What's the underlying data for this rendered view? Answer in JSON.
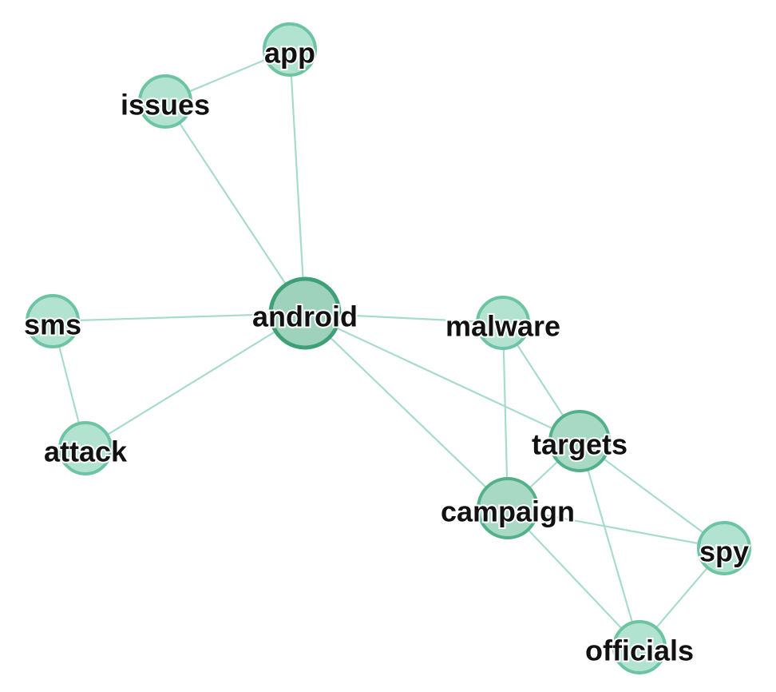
{
  "graph": {
    "node_fill": "#b2e2d0",
    "node_stroke": "#6cc4a2",
    "node_fill_strong": "#9fd2bc",
    "node_stroke_strong": "#3fa078",
    "edge_color": "#a8dcc9",
    "nodes": [
      {
        "id": "app",
        "label": "app",
        "weight": 1
      },
      {
        "id": "issues",
        "label": "issues",
        "weight": 1
      },
      {
        "id": "android",
        "label": "android",
        "weight": 3
      },
      {
        "id": "sms",
        "label": "sms",
        "weight": 1
      },
      {
        "id": "attack",
        "label": "attack",
        "weight": 1
      },
      {
        "id": "malware",
        "label": "malware",
        "weight": 1
      },
      {
        "id": "targets",
        "label": "targets",
        "weight": 2
      },
      {
        "id": "campaign",
        "label": "campaign",
        "weight": 2
      },
      {
        "id": "spy",
        "label": "spy",
        "weight": 1
      },
      {
        "id": "officials",
        "label": "officials",
        "weight": 1
      }
    ],
    "edges": [
      [
        "app",
        "issues"
      ],
      [
        "app",
        "android"
      ],
      [
        "issues",
        "android"
      ],
      [
        "sms",
        "android"
      ],
      [
        "sms",
        "attack"
      ],
      [
        "attack",
        "android"
      ],
      [
        "android",
        "malware"
      ],
      [
        "android",
        "targets"
      ],
      [
        "android",
        "campaign"
      ],
      [
        "malware",
        "targets"
      ],
      [
        "malware",
        "campaign"
      ],
      [
        "targets",
        "campaign"
      ],
      [
        "targets",
        "spy"
      ],
      [
        "targets",
        "officials"
      ],
      [
        "campaign",
        "spy"
      ],
      [
        "campaign",
        "officials"
      ],
      [
        "spy",
        "officials"
      ]
    ]
  }
}
